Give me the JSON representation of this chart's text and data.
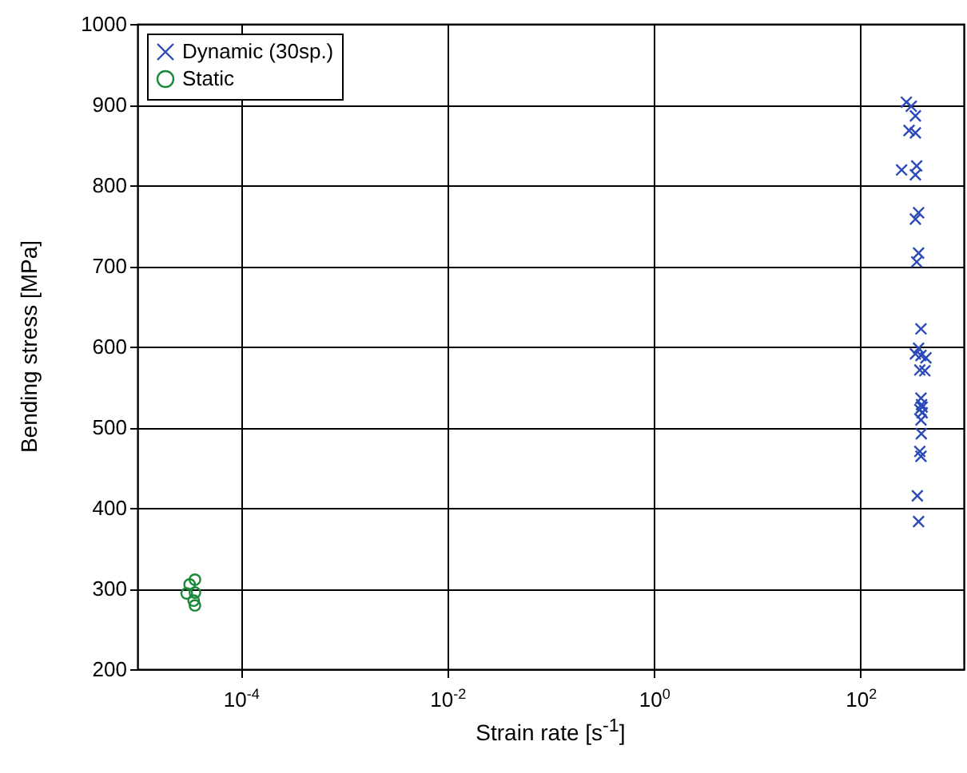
{
  "chart_data": {
    "type": "scatter",
    "xlabel": "Strain rate [s$^{-1}$]",
    "ylabel": "Bending stress [MPa]",
    "log": "x",
    "grid": true,
    "legend": "top left",
    "xlim": [
      1e-05,
      1000
    ],
    "ylim": [
      200,
      1000
    ],
    "xticks": [
      {
        "value": 0.0001,
        "label": "10$^{-4}$"
      },
      {
        "value": 0.01,
        "label": "10$^{-2}$"
      },
      {
        "value": 1,
        "label": "10$^{0}$"
      },
      {
        "value": 100,
        "label": "10$^{2}$"
      }
    ],
    "yticks": [
      200,
      300,
      400,
      500,
      600,
      700,
      800,
      900,
      1000
    ],
    "series": [
      {
        "name": "Dynamic (30sp.)",
        "color": "#2b4ab8",
        "marker": "cross",
        "x": [
          278,
          310,
          340,
          295,
          340,
          250,
          350,
          340,
          365,
          340,
          365,
          350,
          385,
          365,
          340,
          385,
          430,
          375,
          385,
          390,
          375,
          395,
          385,
          388,
          375,
          385,
          355,
          365,
          395,
          420
        ],
        "values": [
          903,
          898,
          886,
          868,
          865,
          819,
          824,
          813,
          766,
          758,
          716,
          705,
          622,
          598,
          591,
          589,
          586,
          571,
          536,
          528,
          522,
          518,
          509,
          492,
          470,
          464,
          415,
          383,
          525,
          570
        ]
      },
      {
        "name": "Static",
        "color": "#1a8a3a",
        "marker": "circle",
        "x": [
          3.6e-05,
          3.2e-05,
          3e-05,
          3.6e-05,
          3.5e-05,
          3.6e-05
        ],
        "values": [
          311,
          305,
          294,
          295,
          285,
          279
        ]
      }
    ]
  }
}
